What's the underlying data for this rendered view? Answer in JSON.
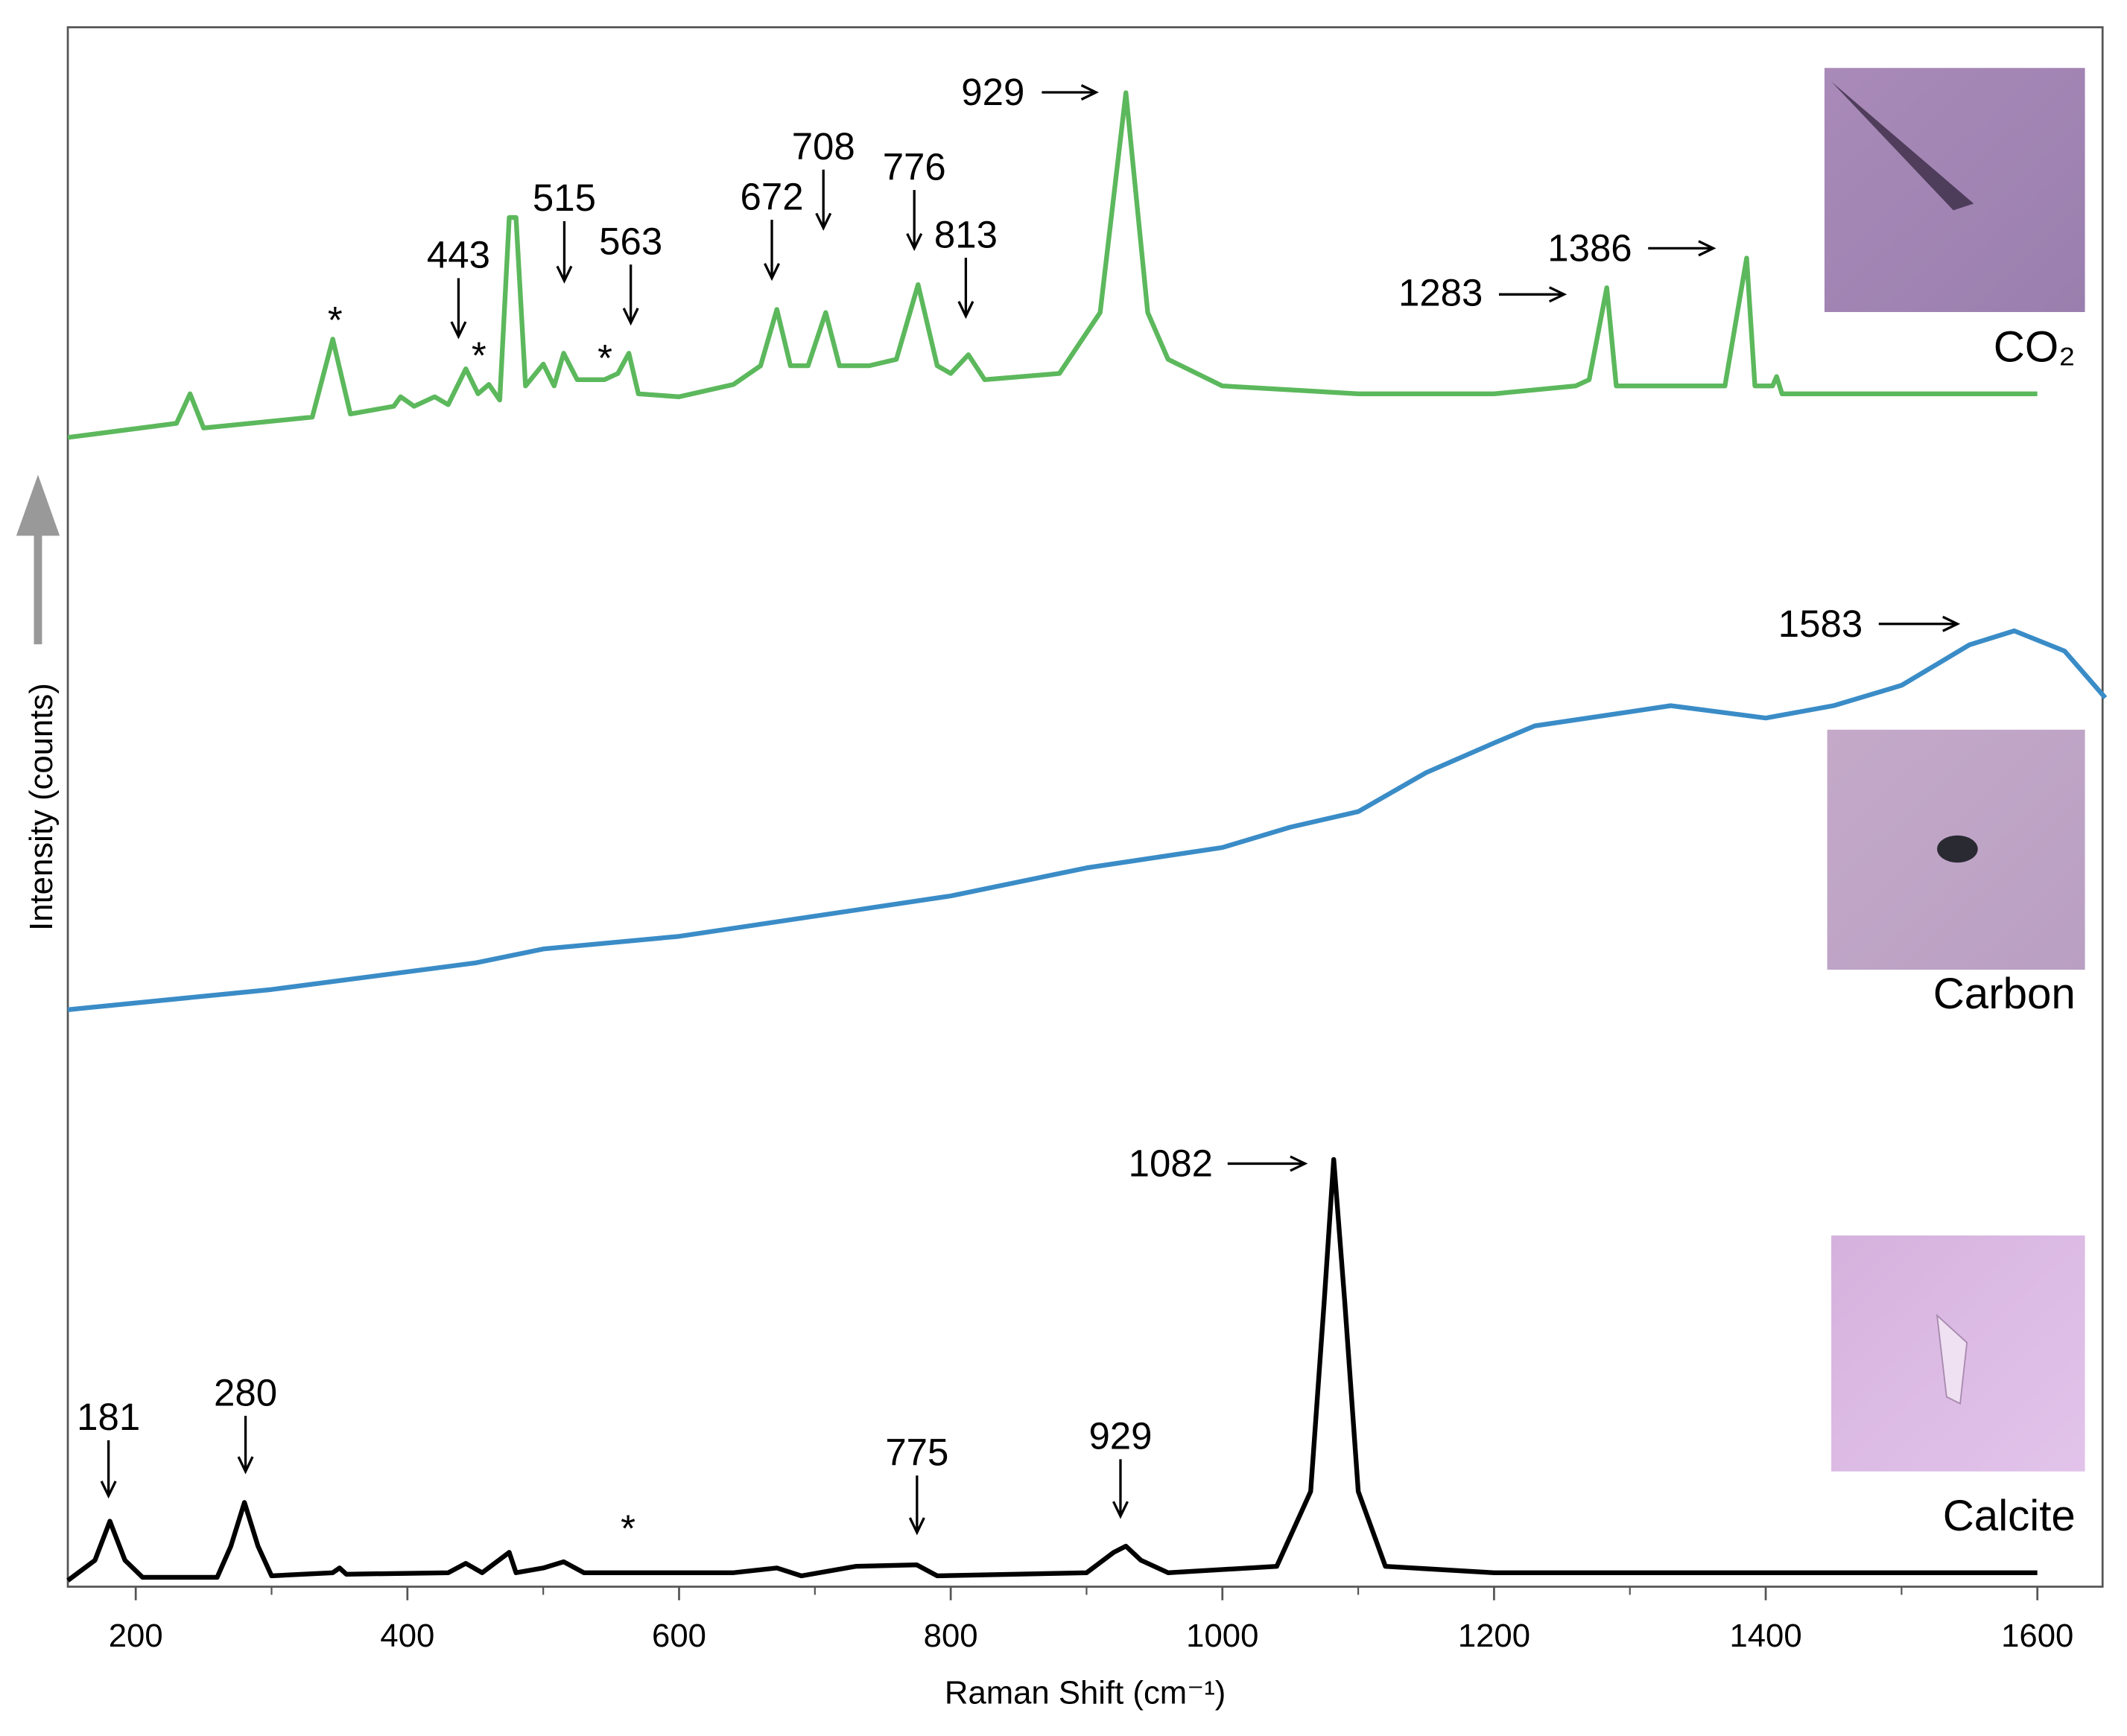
{
  "chart_data": {
    "type": "line",
    "xlabel": "Raman Shift (cm⁻¹)",
    "ylabel": "Intensity (counts)",
    "xlim": [
      150,
      1650
    ],
    "xticks": [
      200,
      400,
      600,
      800,
      1000,
      1200,
      1400,
      1600
    ],
    "ylim": [
      0,
      100
    ],
    "grid": false,
    "series": [
      {
        "name": "CO₂",
        "color": "#5cb85c",
        "x": [
          150,
          230,
          240,
          250,
          330,
          345,
          358,
          390,
          395,
          405,
          420,
          430,
          443,
          452,
          460,
          468,
          475,
          480,
          487,
          500,
          508,
          515,
          525,
          545,
          555,
          563,
          570,
          600,
          640,
          660,
          672,
          682,
          695,
          708,
          718,
          740,
          760,
          776,
          790,
          800,
          813,
          825,
          880,
          910,
          929,
          945,
          960,
          1000,
          1100,
          1200,
          1260,
          1270,
          1283,
          1290,
          1370,
          1386,
          1392,
          1405,
          1408,
          1412,
          1600
        ],
        "values": [
          73.7,
          74.6,
          76.5,
          74.3,
          75.0,
          80.0,
          75.2,
          75.7,
          76.3,
          75.7,
          76.3,
          75.8,
          78.1,
          76.5,
          77.1,
          76.1,
          87.8,
          87.8,
          77.0,
          78.4,
          77.0,
          79.1,
          77.4,
          77.4,
          77.8,
          79.1,
          76.5,
          76.3,
          77.1,
          78.3,
          81.9,
          78.3,
          78.3,
          81.7,
          78.3,
          78.3,
          78.7,
          83.5,
          78.3,
          77.8,
          79.0,
          77.4,
          77.8,
          81.7,
          95.8,
          81.7,
          78.7,
          77.0,
          76.5,
          76.5,
          77.0,
          77.4,
          83.3,
          77.0,
          77.0,
          85.2,
          77.0,
          77.0,
          77.6,
          76.5,
          76.5
        ]
      },
      {
        "name": "Carbon",
        "color": "#3a8cc7",
        "x": [
          150,
          300,
          450,
          500,
          600,
          700,
          800,
          900,
          1000,
          1050,
          1100,
          1150,
          1200,
          1230,
          1300,
          1330,
          1400,
          1450,
          1500,
          1550,
          1583,
          1620,
          1650
        ],
        "values": [
          37.0,
          38.3,
          40.0,
          40.9,
          41.7,
          43.0,
          44.3,
          46.1,
          47.4,
          48.7,
          49.7,
          52.2,
          54.1,
          55.2,
          56.1,
          56.5,
          55.7,
          56.5,
          57.8,
          60.4,
          61.3,
          60.0,
          57.0
        ]
      },
      {
        "name": "Calcite",
        "color": "#000000",
        "x": [
          150,
          170,
          181,
          192,
          205,
          260,
          270,
          280,
          290,
          300,
          345,
          350,
          355,
          430,
          443,
          455,
          475,
          480,
          500,
          515,
          530,
          640,
          672,
          690,
          730,
          775,
          790,
          900,
          920,
          929,
          940,
          960,
          1040,
          1065,
          1075,
          1082,
          1090,
          1100,
          1120,
          1200,
          1600
        ],
        "values": [
          0.4,
          1.7,
          4.2,
          1.7,
          0.6,
          0.6,
          2.6,
          5.4,
          2.6,
          0.7,
          0.9,
          1.2,
          0.8,
          0.9,
          1.5,
          0.9,
          2.2,
          0.9,
          1.2,
          1.6,
          0.9,
          0.9,
          1.2,
          0.7,
          1.3,
          1.4,
          0.7,
          0.9,
          2.2,
          2.6,
          1.7,
          0.9,
          1.3,
          6.1,
          18.3,
          27.4,
          18.3,
          6.1,
          1.3,
          0.9,
          0.9
        ]
      }
    ],
    "annotations": [
      "929",
      "1386",
      "1283",
      "443",
      "515",
      "563",
      "672",
      "708",
      "776",
      "813",
      "*",
      "*",
      "*",
      "1583",
      "1082",
      "181",
      "280",
      "775",
      "929",
      "*"
    ]
  }
}
